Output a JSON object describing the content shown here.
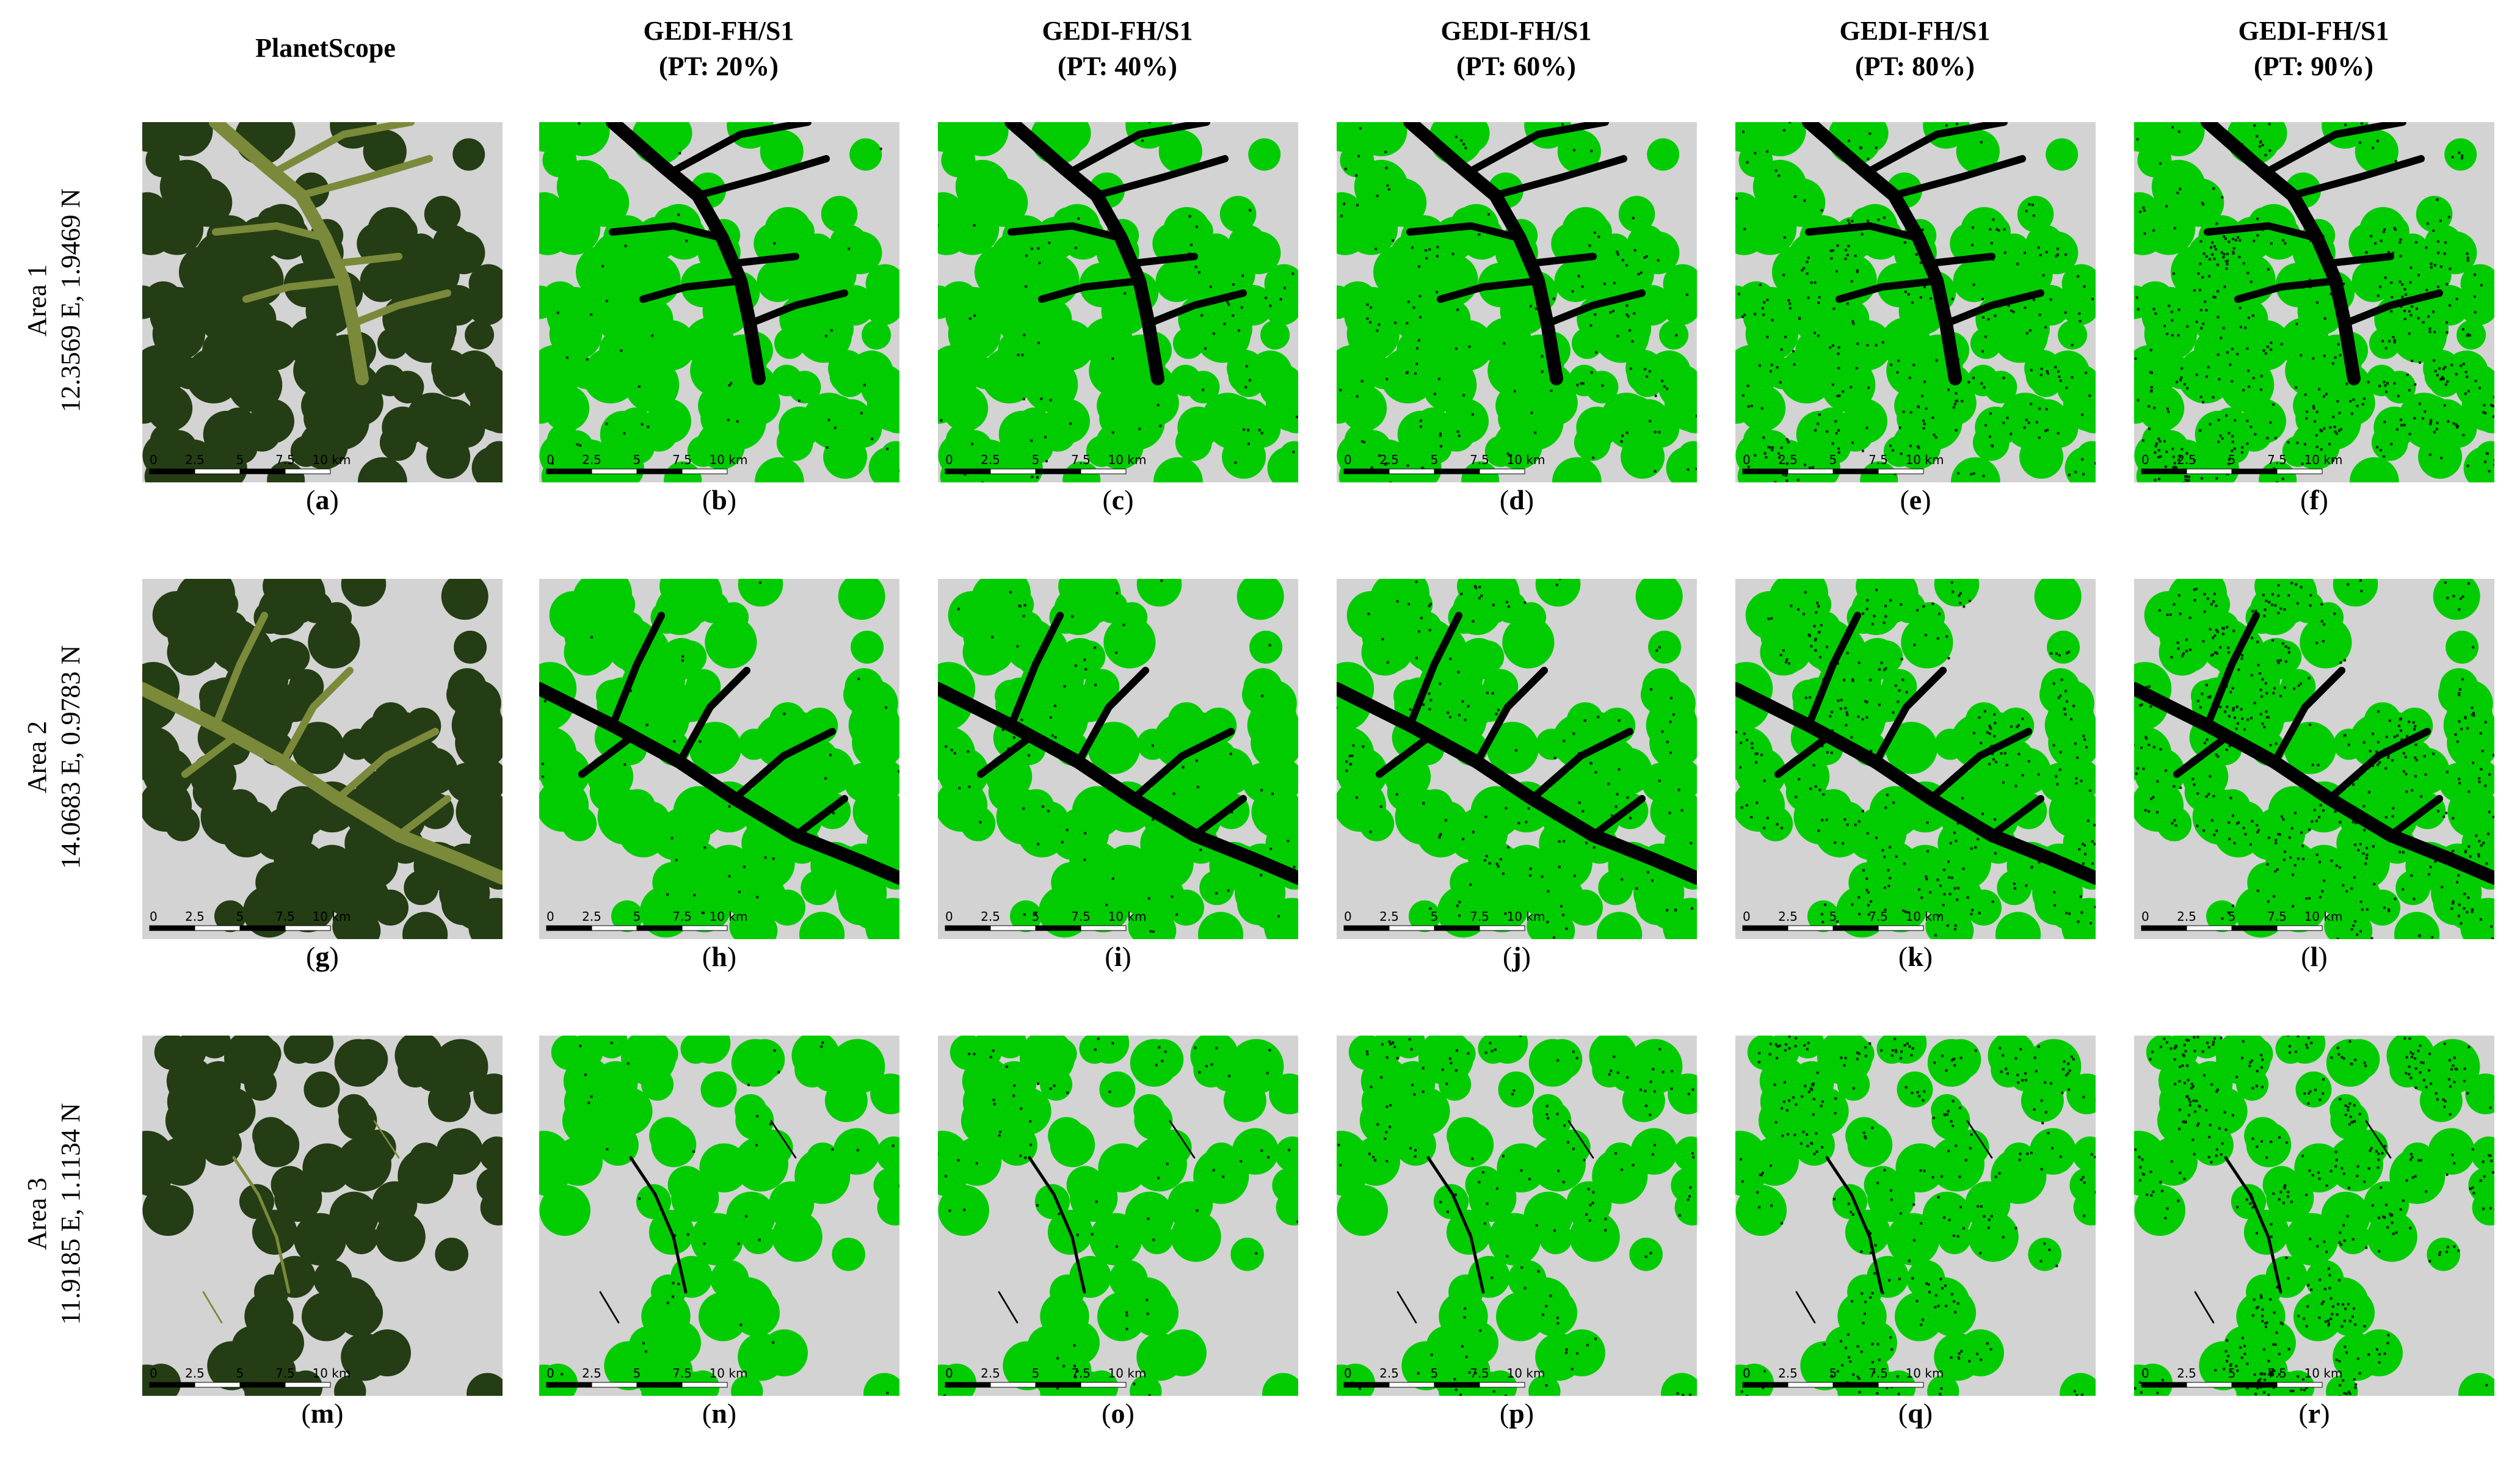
{
  "columns": [
    {
      "line1": "PlanetScope",
      "line2": ""
    },
    {
      "line1": "GEDI-FH/S1",
      "line2": "(PT: 20%)"
    },
    {
      "line1": "GEDI-FH/S1",
      "line2": "(PT: 40%)"
    },
    {
      "line1": "GEDI-FH/S1",
      "line2": "(PT: 60%)"
    },
    {
      "line1": "GEDI-FH/S1",
      "line2": "(PT: 80%)"
    },
    {
      "line1": "GEDI-FH/S1",
      "line2": "(PT: 90%)"
    }
  ],
  "rows": [
    {
      "area": "Area 1",
      "coords": "12.3569 E, 1.9469 N",
      "letters": [
        "a",
        "b",
        "c",
        "d",
        "e",
        "f"
      ]
    },
    {
      "area": "Area 2",
      "coords": "14.0683 E, 0.9783 N",
      "letters": [
        "g",
        "h",
        "i",
        "j",
        "k",
        "l"
      ]
    },
    {
      "area": "Area 3",
      "coords": "11.9185 E, 1.1134 N",
      "letters": [
        "m",
        "n",
        "o",
        "p",
        "q",
        "r"
      ]
    }
  ],
  "scalebar": {
    "ticks": [
      "0",
      "2.5",
      "5",
      "7.5",
      "10 km"
    ]
  },
  "colors": {
    "forest_green": "#00cc00",
    "river_black": "#000000",
    "background_gray": "#d3d3d3",
    "satellite_forest": "#243d14",
    "satellite_river": "#7a8a3a"
  }
}
